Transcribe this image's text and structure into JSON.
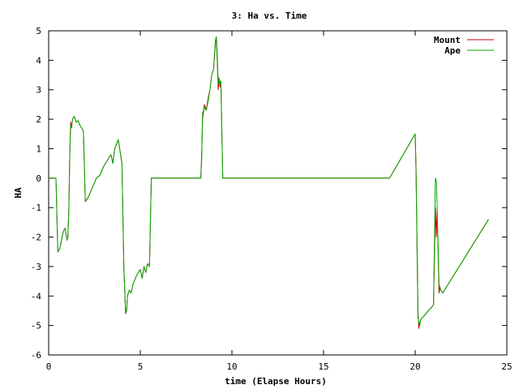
{
  "chart_data": {
    "type": "line",
    "title": "3: Ha vs. Time",
    "xlabel": "time (Elapse Hours)",
    "ylabel": "HA",
    "xlim": [
      0,
      25
    ],
    "ylim": [
      -6,
      5
    ],
    "xticks": [
      "0",
      "5",
      "10",
      "15",
      "20",
      "25"
    ],
    "yticks": [
      "5",
      "4",
      "3",
      "2",
      "1",
      "0",
      "-1",
      "-2",
      "-3",
      "-4",
      "-5",
      "-6"
    ],
    "grid": false,
    "legend": "top-right",
    "series": [
      {
        "name": "Mount",
        "color": "#cc0000",
        "x": [
          0,
          0.4,
          0.5,
          0.6,
          0.8,
          0.9,
          1.0,
          1.05,
          1.1,
          1.15,
          1.2,
          1.25,
          1.3,
          1.4,
          1.5,
          1.6,
          1.7,
          1.8,
          1.9,
          2.0,
          2.1,
          2.2,
          2.4,
          2.6,
          2.8,
          3.0,
          3.2,
          3.4,
          3.5,
          3.6,
          3.8,
          4.0,
          4.1,
          4.2,
          4.25,
          4.3,
          4.4,
          4.5,
          4.6,
          4.8,
          5.0,
          5.1,
          5.2,
          5.3,
          5.4,
          5.5,
          5.6,
          8.3,
          8.35,
          8.4,
          8.5,
          8.6,
          8.7,
          8.8,
          8.9,
          9.0,
          9.1,
          9.15,
          9.2,
          9.25,
          9.3,
          9.35,
          9.4,
          9.5,
          18.6,
          20.0,
          20.05,
          20.1,
          20.15,
          20.2,
          20.25,
          20.3,
          21.0,
          21.1,
          21.15,
          21.2,
          21.3,
          21.35,
          21.4,
          21.5,
          24.0
        ],
        "values": [
          0,
          0,
          -2.5,
          -2.4,
          -1.8,
          -1.7,
          -2.1,
          -2.0,
          -1.0,
          0.7,
          1.9,
          1.7,
          2.0,
          2.1,
          1.9,
          1.95,
          1.8,
          1.7,
          1.6,
          -0.8,
          -0.7,
          -0.6,
          -0.3,
          0.0,
          0.1,
          0.4,
          0.6,
          0.8,
          0.5,
          1.0,
          1.3,
          0.5,
          -3.0,
          -4.6,
          -4.5,
          -4.0,
          -3.8,
          -3.9,
          -3.6,
          -3.3,
          -3.1,
          -3.4,
          -3.0,
          -3.2,
          -2.9,
          -3.0,
          0,
          0,
          0.8,
          2.0,
          2.5,
          2.3,
          2.7,
          3.0,
          3.5,
          3.7,
          4.6,
          4.7,
          4.0,
          3.0,
          3.4,
          3.1,
          3.2,
          0,
          0,
          1.5,
          0.3,
          -2.2,
          -4.5,
          -5.1,
          -4.9,
          -4.8,
          -4.3,
          -1.0,
          -2.0,
          -1.1,
          -3.9,
          -3.7,
          -3.8,
          -3.9,
          -1.4
        ]
      },
      {
        "name": "Ape",
        "color": "#00aa00",
        "x": [
          0,
          0.4,
          0.5,
          0.6,
          0.8,
          0.9,
          1.0,
          1.05,
          1.1,
          1.15,
          1.2,
          1.25,
          1.3,
          1.4,
          1.5,
          1.6,
          1.7,
          1.8,
          1.9,
          2.0,
          2.1,
          2.2,
          2.4,
          2.6,
          2.8,
          3.0,
          3.2,
          3.4,
          3.5,
          3.6,
          3.8,
          4.0,
          4.1,
          4.2,
          4.25,
          4.3,
          4.4,
          4.5,
          4.6,
          4.8,
          5.0,
          5.1,
          5.2,
          5.3,
          5.4,
          5.5,
          5.6,
          8.3,
          8.35,
          8.4,
          8.5,
          8.6,
          8.7,
          8.8,
          8.9,
          9.0,
          9.1,
          9.15,
          9.2,
          9.25,
          9.3,
          9.35,
          9.4,
          9.5,
          18.6,
          20.0,
          20.05,
          20.1,
          20.15,
          20.2,
          20.25,
          20.3,
          21.0,
          21.1,
          21.15,
          21.2,
          21.3,
          21.35,
          21.4,
          21.5,
          24.0
        ],
        "values": [
          0,
          0,
          -2.5,
          -2.4,
          -1.8,
          -1.7,
          -2.1,
          -2.0,
          -1.1,
          0.8,
          1.8,
          1.7,
          2.0,
          2.1,
          1.9,
          1.95,
          1.8,
          1.7,
          1.6,
          -0.8,
          -0.7,
          -0.6,
          -0.3,
          0.0,
          0.1,
          0.4,
          0.6,
          0.8,
          0.5,
          1.0,
          1.3,
          0.5,
          -3.0,
          -4.6,
          -4.5,
          -4.0,
          -3.8,
          -3.9,
          -3.6,
          -3.3,
          -3.1,
          -3.4,
          -3.0,
          -3.2,
          -2.9,
          -3.0,
          0,
          0,
          0.6,
          2.2,
          2.4,
          2.3,
          2.6,
          3.0,
          3.5,
          3.7,
          4.7,
          4.8,
          4.2,
          3.2,
          3.4,
          3.2,
          3.3,
          0,
          0,
          1.5,
          0.1,
          -2.5,
          -4.7,
          -4.9,
          -5.0,
          -4.8,
          -4.3,
          0.0,
          -0.1,
          -1.0,
          -3.6,
          -3.7,
          -3.8,
          -3.9,
          -1.4
        ]
      }
    ]
  }
}
